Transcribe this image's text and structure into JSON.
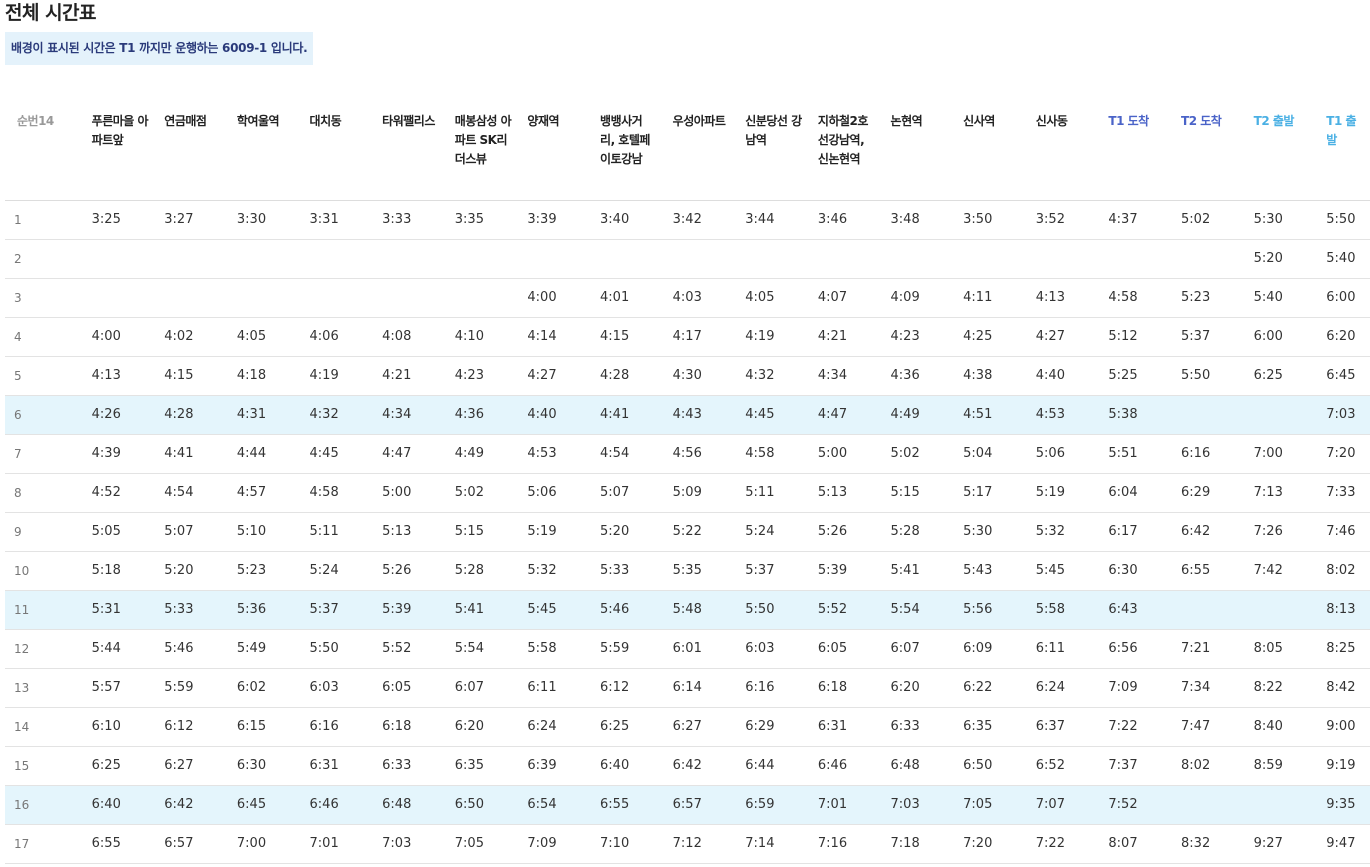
{
  "page": {
    "title": "전체 시간표",
    "notice": "배경이 표시된 시간은 T1 까지만 운행하는 6009-1 입니다."
  },
  "headers": [
    "순번14",
    "푸른마을 아파트앞",
    "연금매점",
    "학여울역",
    "대치동",
    "타워팰리스",
    "매봉삼성 아파트 SK리더스뷰",
    "양재역",
    "뱅뱅사거리, 호텔페이토강남",
    "우성아파트",
    "신분당선 강남역",
    "지하철2호선강남역, 신논현역",
    "논현역",
    "신사역",
    "신사동",
    "T1 도착",
    "T2 도착",
    "T2 출발",
    "T1 출발"
  ],
  "header_classes": [
    "seq",
    "",
    "",
    "",
    "",
    "",
    "",
    "",
    "",
    "",
    "",
    "",
    "",
    "",
    "",
    "t1",
    "t2",
    "dep",
    "dep"
  ],
  "highlight_color": "#e4f5fc",
  "rows": [
    {
      "hl": false,
      "cells": [
        "1",
        "3:25",
        "3:27",
        "3:30",
        "3:31",
        "3:33",
        "3:35",
        "3:39",
        "3:40",
        "3:42",
        "3:44",
        "3:46",
        "3:48",
        "3:50",
        "3:52",
        "4:37",
        "5:02",
        "5:30",
        "5:50"
      ]
    },
    {
      "hl": false,
      "cells": [
        "2",
        "",
        "",
        "",
        "",
        "",
        "",
        "",
        "",
        "",
        "",
        "",
        "",
        "",
        "",
        "",
        "",
        "5:20",
        "5:40"
      ]
    },
    {
      "hl": false,
      "cells": [
        "3",
        "",
        "",
        "",
        "",
        "",
        "",
        "4:00",
        "4:01",
        "4:03",
        "4:05",
        "4:07",
        "4:09",
        "4:11",
        "4:13",
        "4:58",
        "5:23",
        "5:40",
        "6:00"
      ]
    },
    {
      "hl": false,
      "cells": [
        "4",
        "4:00",
        "4:02",
        "4:05",
        "4:06",
        "4:08",
        "4:10",
        "4:14",
        "4:15",
        "4:17",
        "4:19",
        "4:21",
        "4:23",
        "4:25",
        "4:27",
        "5:12",
        "5:37",
        "6:00",
        "6:20"
      ]
    },
    {
      "hl": false,
      "cells": [
        "5",
        "4:13",
        "4:15",
        "4:18",
        "4:19",
        "4:21",
        "4:23",
        "4:27",
        "4:28",
        "4:30",
        "4:32",
        "4:34",
        "4:36",
        "4:38",
        "4:40",
        "5:25",
        "5:50",
        "6:25",
        "6:45"
      ]
    },
    {
      "hl": true,
      "cells": [
        "6",
        "4:26",
        "4:28",
        "4:31",
        "4:32",
        "4:34",
        "4:36",
        "4:40",
        "4:41",
        "4:43",
        "4:45",
        "4:47",
        "4:49",
        "4:51",
        "4:53",
        "5:38",
        "",
        "",
        "7:03"
      ]
    },
    {
      "hl": false,
      "cells": [
        "7",
        "4:39",
        "4:41",
        "4:44",
        "4:45",
        "4:47",
        "4:49",
        "4:53",
        "4:54",
        "4:56",
        "4:58",
        "5:00",
        "5:02",
        "5:04",
        "5:06",
        "5:51",
        "6:16",
        "7:00",
        "7:20"
      ]
    },
    {
      "hl": false,
      "cells": [
        "8",
        "4:52",
        "4:54",
        "4:57",
        "4:58",
        "5:00",
        "5:02",
        "5:06",
        "5:07",
        "5:09",
        "5:11",
        "5:13",
        "5:15",
        "5:17",
        "5:19",
        "6:04",
        "6:29",
        "7:13",
        "7:33"
      ]
    },
    {
      "hl": false,
      "cells": [
        "9",
        "5:05",
        "5:07",
        "5:10",
        "5:11",
        "5:13",
        "5:15",
        "5:19",
        "5:20",
        "5:22",
        "5:24",
        "5:26",
        "5:28",
        "5:30",
        "5:32",
        "6:17",
        "6:42",
        "7:26",
        "7:46"
      ]
    },
    {
      "hl": false,
      "cells": [
        "10",
        "5:18",
        "5:20",
        "5:23",
        "5:24",
        "5:26",
        "5:28",
        "5:32",
        "5:33",
        "5:35",
        "5:37",
        "5:39",
        "5:41",
        "5:43",
        "5:45",
        "6:30",
        "6:55",
        "7:42",
        "8:02"
      ]
    },
    {
      "hl": true,
      "cells": [
        "11",
        "5:31",
        "5:33",
        "5:36",
        "5:37",
        "5:39",
        "5:41",
        "5:45",
        "5:46",
        "5:48",
        "5:50",
        "5:52",
        "5:54",
        "5:56",
        "5:58",
        "6:43",
        "",
        "",
        "8:13"
      ]
    },
    {
      "hl": false,
      "cells": [
        "12",
        "5:44",
        "5:46",
        "5:49",
        "5:50",
        "5:52",
        "5:54",
        "5:58",
        "5:59",
        "6:01",
        "6:03",
        "6:05",
        "6:07",
        "6:09",
        "6:11",
        "6:56",
        "7:21",
        "8:05",
        "8:25"
      ]
    },
    {
      "hl": false,
      "cells": [
        "13",
        "5:57",
        "5:59",
        "6:02",
        "6:03",
        "6:05",
        "6:07",
        "6:11",
        "6:12",
        "6:14",
        "6:16",
        "6:18",
        "6:20",
        "6:22",
        "6:24",
        "7:09",
        "7:34",
        "8:22",
        "8:42"
      ]
    },
    {
      "hl": false,
      "cells": [
        "14",
        "6:10",
        "6:12",
        "6:15",
        "6:16",
        "6:18",
        "6:20",
        "6:24",
        "6:25",
        "6:27",
        "6:29",
        "6:31",
        "6:33",
        "6:35",
        "6:37",
        "7:22",
        "7:47",
        "8:40",
        "9:00"
      ]
    },
    {
      "hl": false,
      "cells": [
        "15",
        "6:25",
        "6:27",
        "6:30",
        "6:31",
        "6:33",
        "6:35",
        "6:39",
        "6:40",
        "6:42",
        "6:44",
        "6:46",
        "6:48",
        "6:50",
        "6:52",
        "7:37",
        "8:02",
        "8:59",
        "9:19"
      ]
    },
    {
      "hl": true,
      "cells": [
        "16",
        "6:40",
        "6:42",
        "6:45",
        "6:46",
        "6:48",
        "6:50",
        "6:54",
        "6:55",
        "6:57",
        "6:59",
        "7:01",
        "7:03",
        "7:05",
        "7:07",
        "7:52",
        "",
        "",
        "9:35"
      ]
    },
    {
      "hl": false,
      "cells": [
        "17",
        "6:55",
        "6:57",
        "7:00",
        "7:01",
        "7:03",
        "7:05",
        "7:09",
        "7:10",
        "7:12",
        "7:14",
        "7:16",
        "7:18",
        "7:20",
        "7:22",
        "8:07",
        "8:32",
        "9:27",
        "9:47"
      ]
    }
  ]
}
